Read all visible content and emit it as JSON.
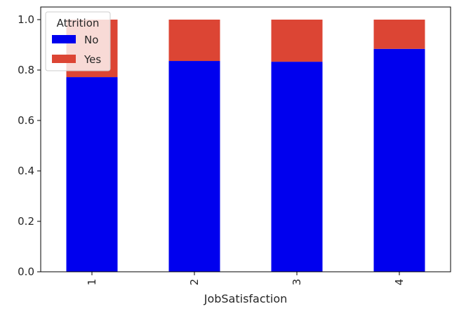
{
  "chart_data": {
    "type": "bar",
    "stacked": true,
    "categories": [
      "1",
      "2",
      "3",
      "4"
    ],
    "series": [
      {
        "name": "No",
        "values": [
          0.772,
          0.836,
          0.833,
          0.884
        ],
        "color": "#0000ee"
      },
      {
        "name": "Yes",
        "values": [
          0.228,
          0.164,
          0.167,
          0.116
        ],
        "color": "#dc4534"
      }
    ],
    "title": "",
    "xlabel": "JobSatisfaction",
    "ylabel": "",
    "ylim": [
      0,
      1.05
    ],
    "yticks": [
      "0.0",
      "0.2",
      "0.4",
      "0.6",
      "0.8",
      "1.0"
    ],
    "legend": {
      "title": "Attrition",
      "placement": "top-left"
    },
    "grid": false
  }
}
